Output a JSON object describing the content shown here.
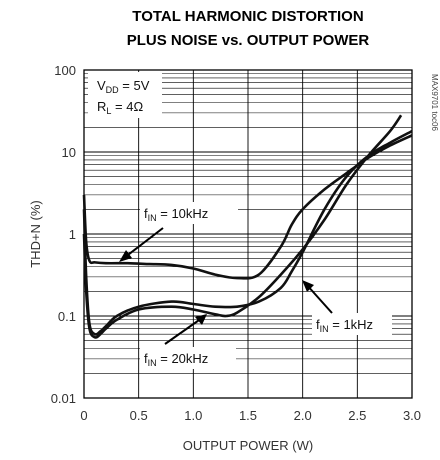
{
  "chart_data": {
    "type": "line",
    "title_lines": [
      "TOTAL HARMONIC DISTORTION",
      "PLUS NOISE vs. OUTPUT POWER"
    ],
    "xlabel": "OUTPUT POWER (W)",
    "ylabel": "THD+N (%)",
    "x_range": [
      0,
      3.0
    ],
    "y_range": [
      0.01,
      100
    ],
    "y_scale": "log",
    "grid": true,
    "x_ticks": [
      "0",
      "0.5",
      "1.0",
      "1.5",
      "2.0",
      "2.5",
      "3.0"
    ],
    "y_ticks": [
      "0.01",
      "0.1",
      "1",
      "10",
      "100"
    ],
    "conditions": [
      {
        "pre": "V",
        "sub": "DD",
        "post": " = 5V"
      },
      {
        "pre": "R",
        "sub": "L",
        "post": " = 4Ω"
      }
    ],
    "side_label": "MAX9701 toc06",
    "series": [
      {
        "label_pre": "f",
        "label_sub": "IN",
        "label_post": " = 10kHz",
        "x": [
          0.0,
          0.02,
          0.05,
          0.1,
          0.2,
          0.4,
          0.6,
          0.8,
          1.0,
          1.2,
          1.4,
          1.6,
          1.8,
          1.9,
          2.0,
          2.2,
          2.4,
          2.6,
          2.8,
          3.0
        ],
        "y": [
          3.0,
          0.8,
          0.47,
          0.45,
          0.44,
          0.44,
          0.43,
          0.42,
          0.38,
          0.32,
          0.29,
          0.32,
          0.7,
          1.3,
          2.0,
          3.5,
          5.5,
          8.5,
          12,
          16
        ]
      },
      {
        "label_pre": "f",
        "label_sub": "IN",
        "label_post": " = 1kHz",
        "x": [
          0.0,
          0.02,
          0.05,
          0.1,
          0.15,
          0.2,
          0.3,
          0.5,
          0.8,
          1.0,
          1.2,
          1.4,
          1.6,
          1.8,
          1.9,
          2.0,
          2.2,
          2.4,
          2.6,
          2.8,
          3.0
        ],
        "y": [
          2.0,
          0.3,
          0.08,
          0.06,
          0.065,
          0.075,
          0.1,
          0.13,
          0.15,
          0.14,
          0.13,
          0.13,
          0.15,
          0.22,
          0.35,
          0.6,
          2.0,
          5.0,
          9.0,
          13,
          18
        ]
      },
      {
        "label_pre": "f",
        "label_sub": "IN",
        "label_post": " = 20kHz",
        "x": [
          0.0,
          0.02,
          0.05,
          0.1,
          0.15,
          0.2,
          0.3,
          0.5,
          0.8,
          1.0,
          1.2,
          1.3,
          1.4,
          1.6,
          1.8,
          2.0,
          2.2,
          2.4,
          2.6,
          2.8,
          2.9
        ],
        "y": [
          1.0,
          0.2,
          0.07,
          0.055,
          0.06,
          0.07,
          0.09,
          0.12,
          0.13,
          0.12,
          0.105,
          0.1,
          0.11,
          0.17,
          0.32,
          0.65,
          1.5,
          4.0,
          9.0,
          18,
          28
        ]
      }
    ]
  }
}
